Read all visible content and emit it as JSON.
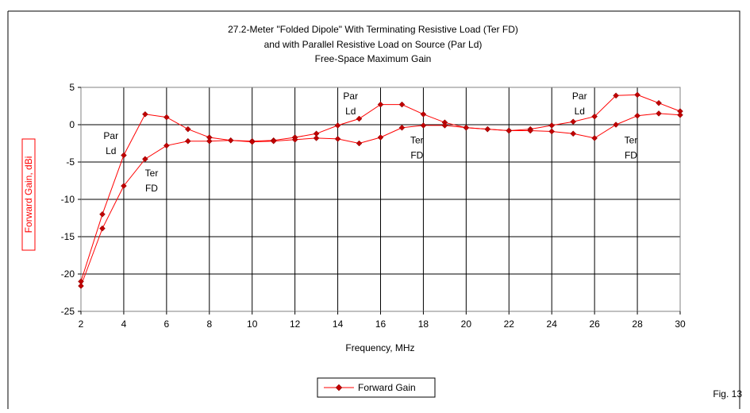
{
  "chart_data": {
    "type": "line",
    "title": [
      "27.2-Meter \"Folded Dipole\" With Terminating Resistive Load (Ter FD)",
      "and with Parallel Resistive Load on Source (Par Ld)",
      "Free-Space Maximum Gain"
    ],
    "xlabel": "Frequency, MHz",
    "ylabel": "Forward Gain,  dBi",
    "xlim": [
      2,
      30
    ],
    "ylim": [
      -25,
      5
    ],
    "x_ticks": [
      2,
      4,
      6,
      8,
      10,
      12,
      14,
      16,
      18,
      20,
      22,
      24,
      26,
      28,
      30
    ],
    "y_ticks": [
      5,
      0,
      -5,
      -10,
      -15,
      -20,
      -25
    ],
    "grid": true,
    "legend": {
      "placement": "bottom-center",
      "entries": [
        "Forward Gain"
      ]
    },
    "figure_label": "Fig. 13",
    "line_color": "#ff0000",
    "marker_color": "#c00000",
    "series": [
      {
        "x": [
          2,
          3,
          4,
          5,
          6,
          7,
          8,
          9,
          10,
          11,
          12,
          13,
          14,
          15,
          16,
          17,
          18,
          19,
          20,
          21,
          22,
          23,
          24,
          25,
          26,
          27,
          28,
          29,
          30
        ],
        "y": [
          -21,
          -12,
          -4.1,
          1.4,
          1,
          -0.6,
          -1.7,
          -2.1,
          -2.2,
          -2.1,
          -1.7,
          -1.2,
          -0.1,
          0.8,
          2.7,
          2.7,
          1.4,
          0.3,
          -0.4,
          -0.6,
          -0.8,
          -0.6,
          -0.1,
          0.4,
          1.1,
          3.9,
          4,
          2.9,
          1.8
        ]
      },
      {
        "x": [
          2,
          3,
          4,
          5,
          6,
          7,
          8,
          9,
          10,
          11,
          12,
          13,
          14,
          15,
          16,
          17,
          18,
          19,
          20,
          21,
          22,
          23,
          24,
          25,
          26,
          27,
          28,
          29,
          30
        ],
        "y": [
          -21.6,
          -13.9,
          -8.2,
          -4.6,
          -2.8,
          -2.2,
          -2.2,
          -2.1,
          -2.3,
          -2.2,
          -2,
          -1.8,
          -1.9,
          -2.5,
          -1.7,
          -0.4,
          -0.1,
          -0.1,
          -0.4,
          -0.6,
          -0.8,
          -0.8,
          -0.9,
          -1.2,
          -1.8,
          0,
          1.2,
          1.5,
          1.3
        ]
      }
    ],
    "annotations": [
      {
        "lines": [
          "Par",
          "Ld"
        ],
        "x": 3.4,
        "y": -1.9
      },
      {
        "lines": [
          "Ter",
          "FD"
        ],
        "x": 5.3,
        "y": -6.9
      },
      {
        "lines": [
          "Par",
          "Ld"
        ],
        "x": 14.6,
        "y": 3.4
      },
      {
        "lines": [
          "Ter",
          "FD"
        ],
        "x": 17.7,
        "y": -2.5
      },
      {
        "lines": [
          "Par",
          "Ld"
        ],
        "x": 25.3,
        "y": 3.4
      },
      {
        "lines": [
          "Ter",
          "FD"
        ],
        "x": 27.7,
        "y": -2.5
      }
    ]
  }
}
